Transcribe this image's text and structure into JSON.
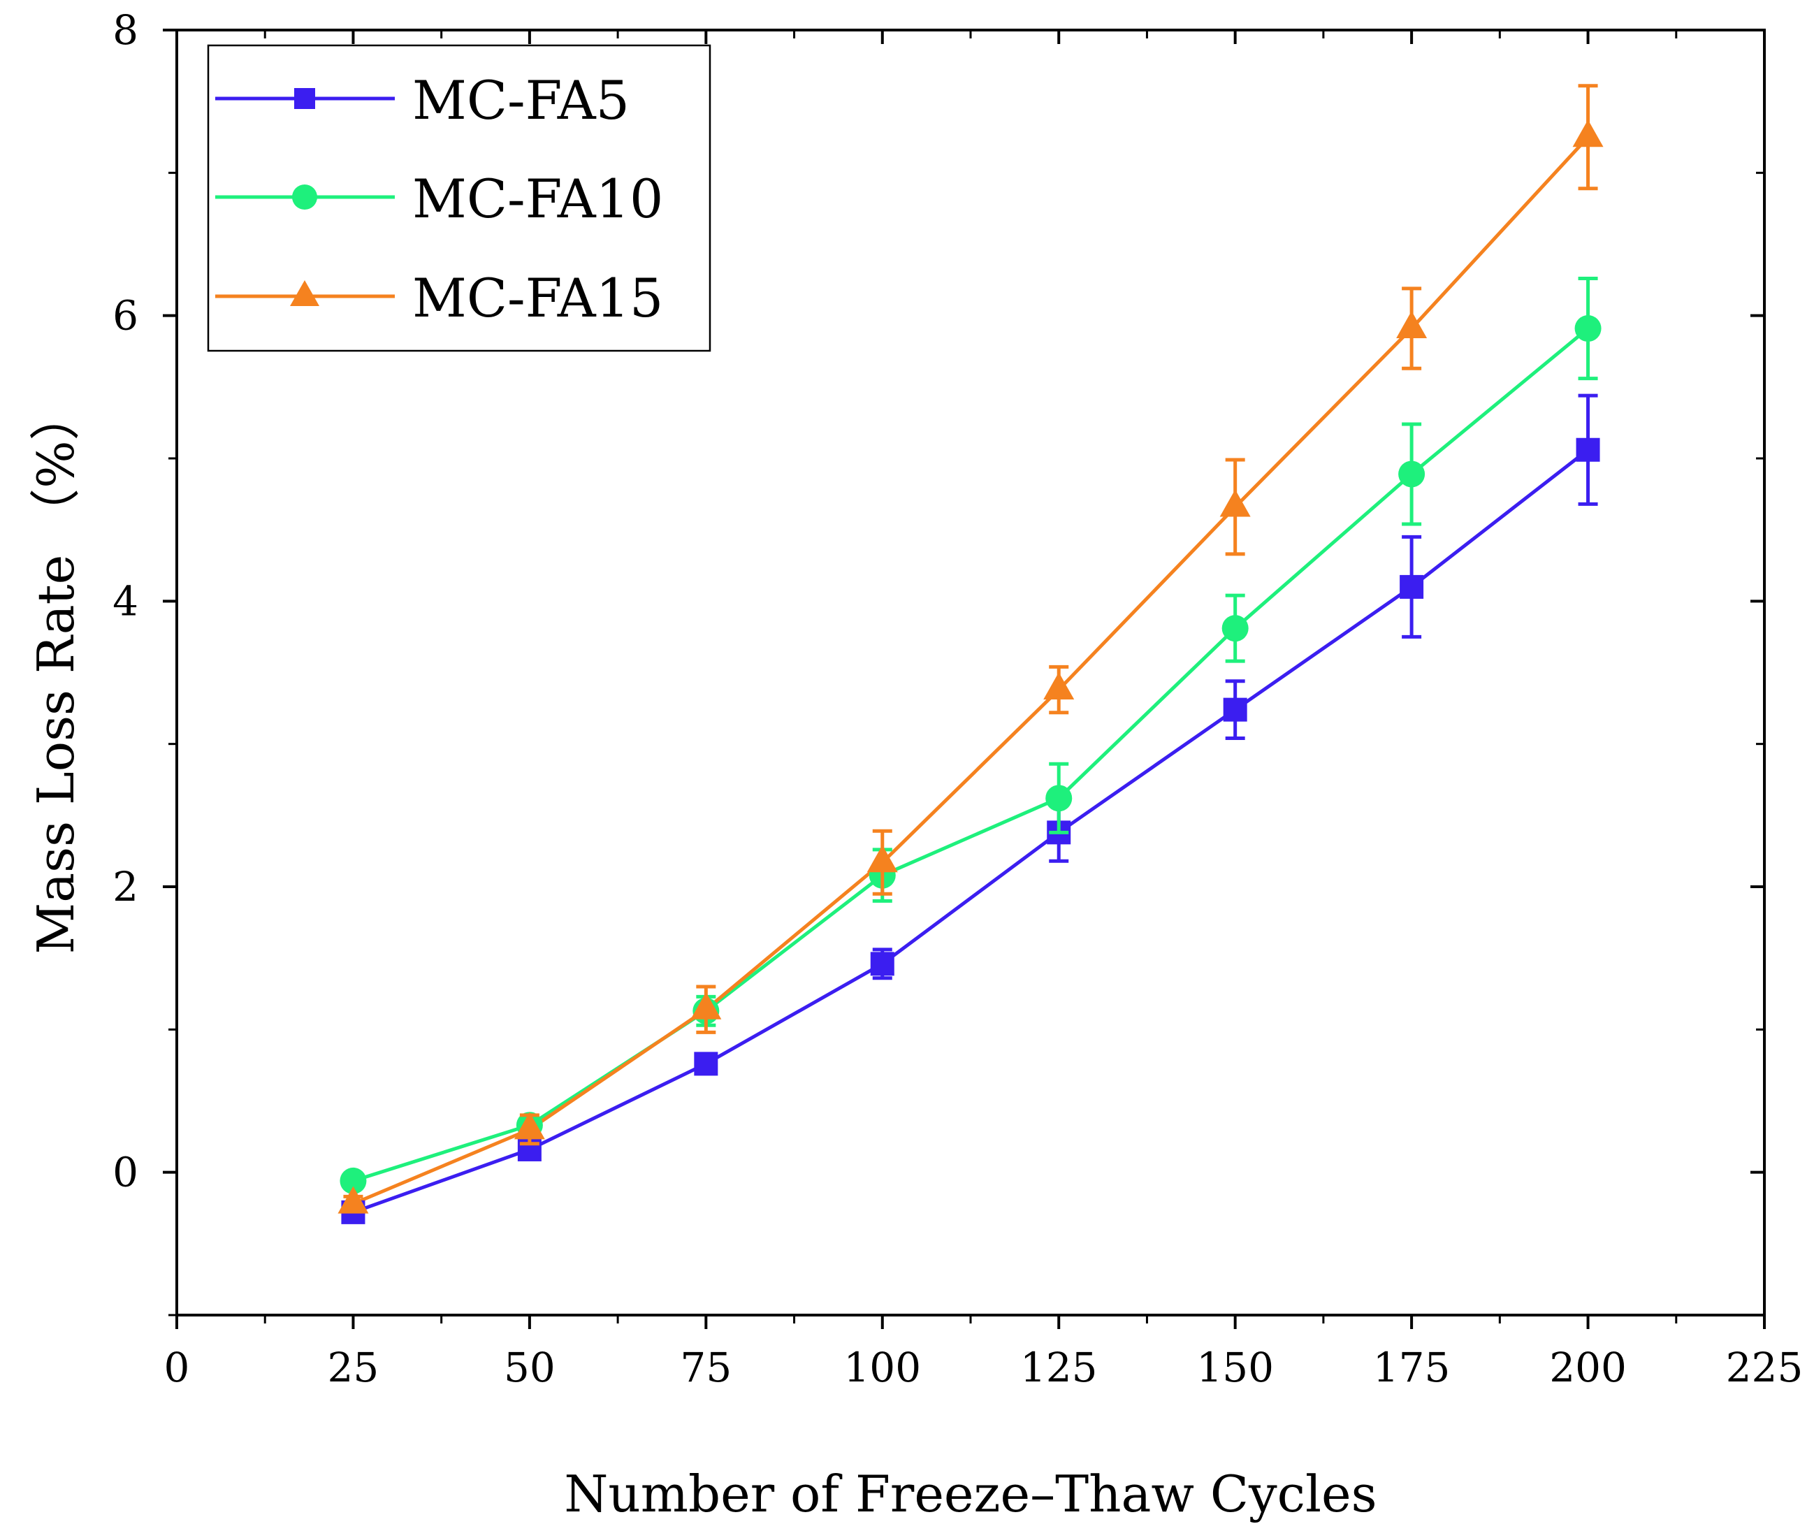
{
  "chart_data": {
    "type": "line",
    "title": "",
    "xlabel": "Number of Freeze–Thaw Cycles",
    "ylabel": "Mass Loss Rate （%）",
    "xlim": [
      0,
      225
    ],
    "ylim": [
      -1,
      8
    ],
    "xticks": [
      "0",
      "25",
      "50",
      "75",
      "100",
      "125",
      "150",
      "175",
      "200",
      "225"
    ],
    "yticks": [
      "0",
      "2",
      "4",
      "6",
      "8"
    ],
    "grid": false,
    "legend_position": "top-left",
    "x": [
      25,
      50,
      75,
      100,
      125,
      150,
      175,
      200
    ],
    "series": [
      {
        "name": "MC-FA5",
        "color": "#3b1ef0",
        "marker": "square",
        "values": [
          -0.28,
          0.16,
          0.76,
          1.46,
          2.38,
          3.24,
          4.1,
          5.06
        ],
        "errors": [
          0.05,
          0.05,
          0.07,
          0.1,
          0.2,
          0.2,
          0.35,
          0.38
        ]
      },
      {
        "name": "MC-FA10",
        "color": "#1ef07c",
        "marker": "circle",
        "values": [
          -0.06,
          0.33,
          1.13,
          2.08,
          2.62,
          3.81,
          4.89,
          5.91
        ],
        "errors": [
          0.04,
          0.05,
          0.1,
          0.18,
          0.24,
          0.23,
          0.35,
          0.35
        ]
      },
      {
        "name": "MC-FA15",
        "color": "#f5821f",
        "marker": "triangle",
        "values": [
          -0.22,
          0.3,
          1.14,
          2.17,
          3.38,
          4.66,
          5.91,
          7.25
        ],
        "errors": [
          0.05,
          0.1,
          0.16,
          0.22,
          0.16,
          0.33,
          0.28,
          0.36
        ]
      }
    ]
  }
}
